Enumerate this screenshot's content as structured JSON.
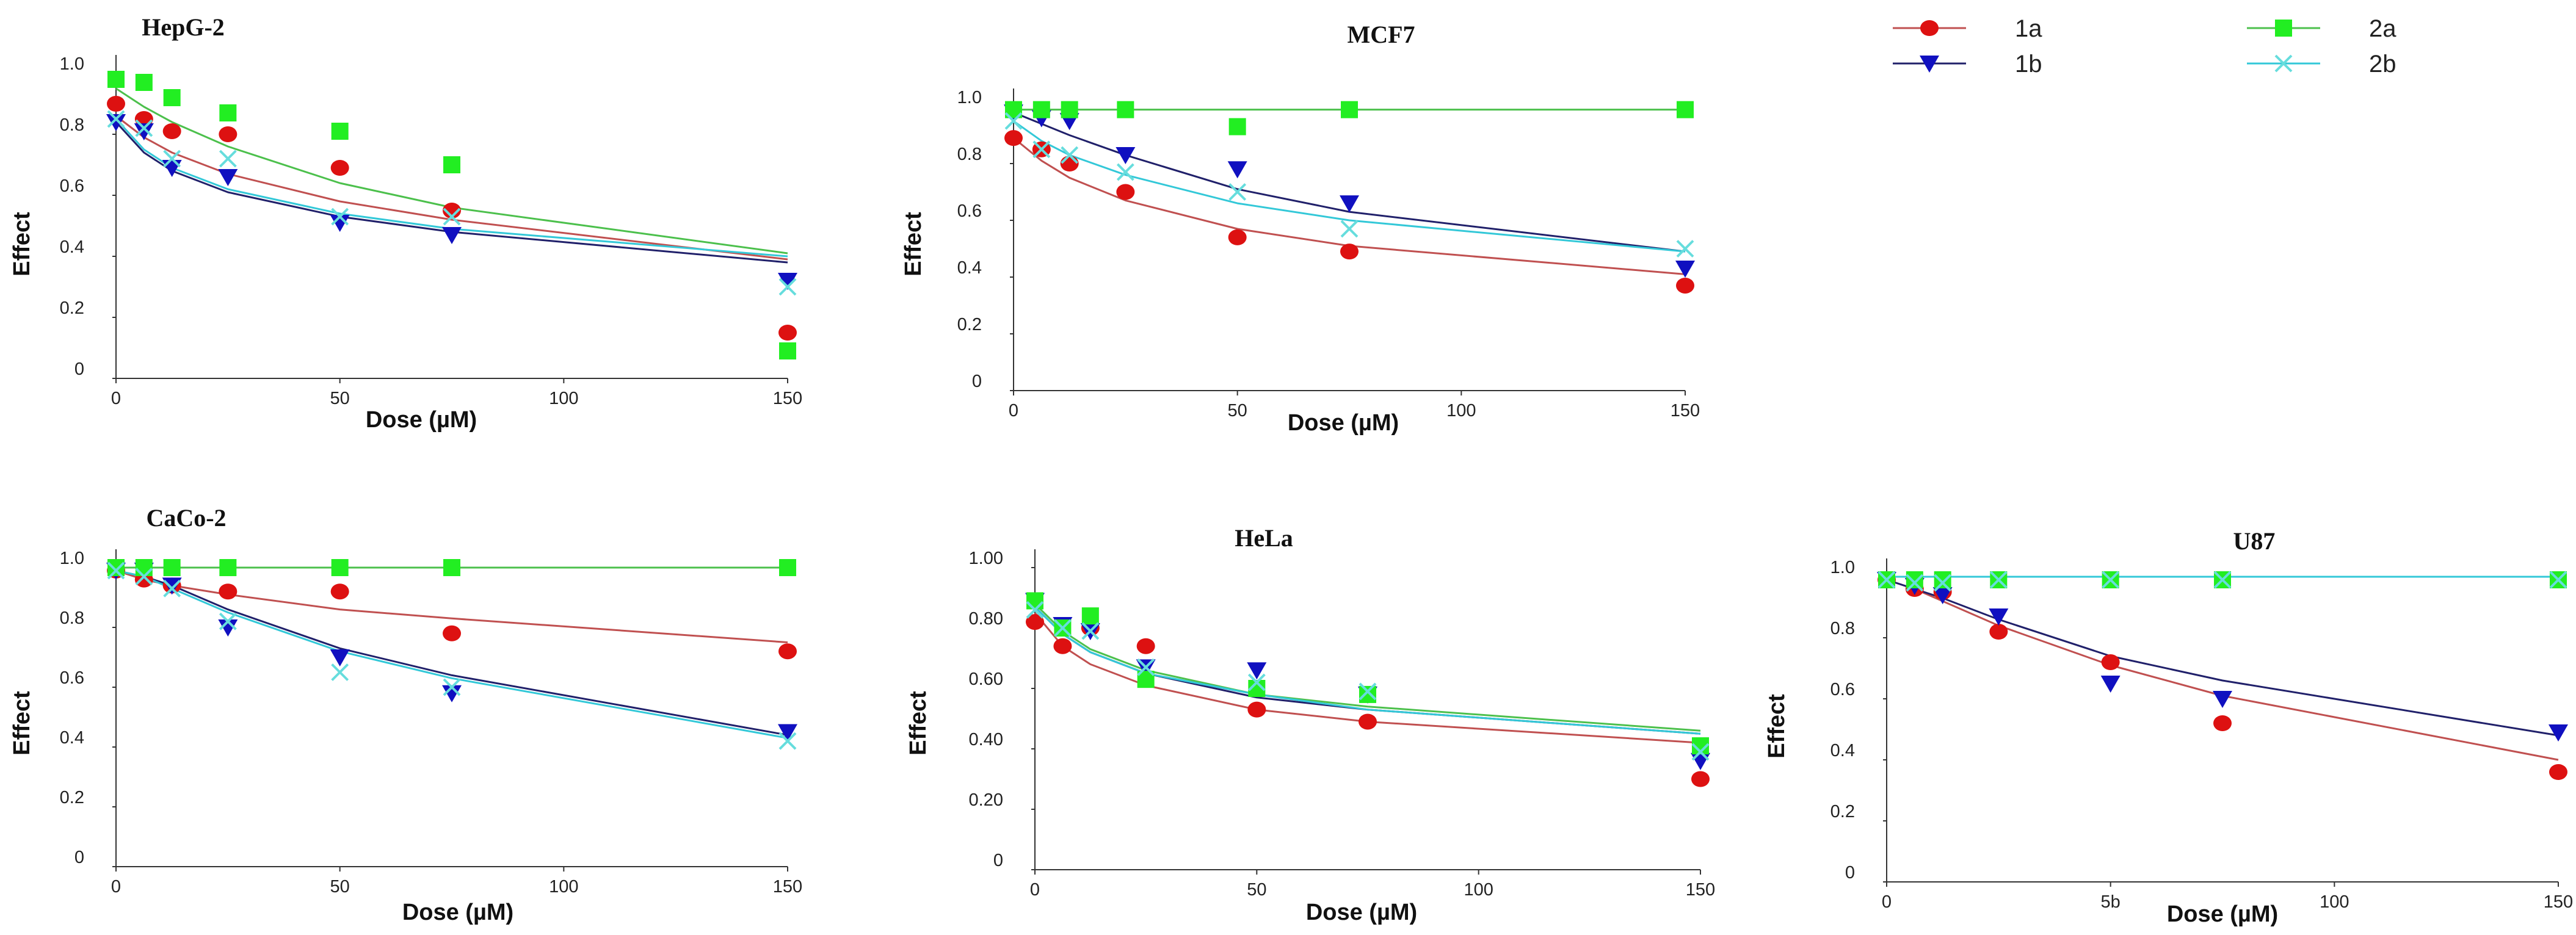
{
  "figure": {
    "legend": [
      {
        "key": "1a",
        "label": "1a",
        "marker": "circle",
        "color": "#dd1111",
        "line_color": "#c05050"
      },
      {
        "key": "1b",
        "label": "1b",
        "marker": "triangle-down",
        "color": "#1010c0",
        "line_color": "#20206a"
      },
      {
        "key": "2a",
        "label": "2a",
        "marker": "square",
        "color": "#22ee22",
        "line_color": "#4cc04c"
      },
      {
        "key": "2b",
        "label": "2b",
        "marker": "x",
        "color": "#66dddd",
        "line_color": "#33c8d8"
      }
    ]
  },
  "chart_data": [
    {
      "type": "scatter",
      "title": "HepG-2",
      "xlabel": "Dose (µM)",
      "ylabel": "Effect",
      "xlim": [
        0,
        150
      ],
      "ylim": [
        0,
        1.0
      ],
      "xticks": [
        "0",
        "50",
        "100",
        "150"
      ],
      "yticks": [
        "0",
        "0.2",
        "0.4",
        "0.6",
        "0.8",
        "1.0"
      ],
      "series": [
        {
          "name": "1a",
          "x": [
            0,
            6.25,
            12.5,
            25,
            50,
            75,
            150
          ],
          "values": [
            0.9,
            0.85,
            0.81,
            0.8,
            0.69,
            0.55,
            0.15
          ],
          "fit": [
            0.86,
            0.79,
            0.74,
            0.67,
            0.58,
            0.52,
            0.39
          ]
        },
        {
          "name": "1b",
          "x": [
            0,
            6.25,
            12.5,
            25,
            50,
            75,
            150
          ],
          "values": [
            0.84,
            0.81,
            0.69,
            0.66,
            0.51,
            0.47,
            0.32
          ],
          "fit": [
            0.84,
            0.74,
            0.68,
            0.61,
            0.53,
            0.48,
            0.38
          ]
        },
        {
          "name": "2a",
          "x": [
            0,
            6.25,
            12.5,
            25,
            50,
            75,
            150
          ],
          "values": [
            0.98,
            0.97,
            0.92,
            0.87,
            0.81,
            0.7,
            0.09
          ],
          "fit": [
            0.95,
            0.89,
            0.84,
            0.76,
            0.64,
            0.56,
            0.41
          ]
        },
        {
          "name": "2b",
          "x": [
            0,
            6.25,
            12.5,
            25,
            50,
            75,
            150
          ],
          "values": [
            0.85,
            0.82,
            0.72,
            0.72,
            0.53,
            0.53,
            0.3
          ],
          "fit": [
            0.85,
            0.75,
            0.69,
            0.62,
            0.54,
            0.49,
            0.4
          ]
        }
      ]
    },
    {
      "type": "scatter",
      "title": "MCF7",
      "xlabel": "Dose (µM)",
      "ylabel": "Effect",
      "xlim": [
        0,
        150
      ],
      "ylim": [
        0,
        1.0
      ],
      "xticks": [
        "0",
        "50",
        "100",
        "150"
      ],
      "yticks": [
        "0",
        "0.2",
        "0.4",
        "0.6",
        "0.8",
        "1.0"
      ],
      "series": [
        {
          "name": "1a",
          "x": [
            0,
            6.25,
            12.5,
            25,
            50,
            75,
            150
          ],
          "values": [
            0.89,
            0.85,
            0.8,
            0.7,
            0.54,
            0.49,
            0.37
          ],
          "fit": [
            0.89,
            0.81,
            0.75,
            0.67,
            0.57,
            0.51,
            0.41
          ]
        },
        {
          "name": "1b",
          "x": [
            0,
            6.25,
            12.5,
            25,
            50,
            75,
            150
          ],
          "values": [
            0.98,
            0.96,
            0.95,
            0.83,
            0.78,
            0.66,
            0.43
          ],
          "fit": [
            0.98,
            0.94,
            0.9,
            0.83,
            0.71,
            0.63,
            0.49
          ]
        },
        {
          "name": "2a",
          "x": [
            0,
            6.25,
            12.5,
            25,
            50,
            75,
            150
          ],
          "values": [
            0.99,
            0.99,
            0.99,
            0.99,
            0.93,
            0.99,
            0.99
          ],
          "fit": [
            0.99,
            0.99,
            0.99,
            0.99,
            0.99,
            0.99,
            0.99
          ]
        },
        {
          "name": "2b",
          "x": [
            0,
            6.25,
            12.5,
            25,
            50,
            75,
            150
          ],
          "values": [
            0.95,
            0.85,
            0.83,
            0.77,
            0.7,
            0.57,
            0.5
          ],
          "fit": [
            0.95,
            0.88,
            0.83,
            0.76,
            0.66,
            0.6,
            0.49
          ]
        }
      ]
    },
    {
      "type": "scatter",
      "title": "CaCo-2",
      "xlabel": "Dose (µM)",
      "ylabel": "Effect",
      "xlim": [
        0,
        150
      ],
      "ylim": [
        0,
        1.0
      ],
      "xticks": [
        "0",
        "50",
        "100",
        "150"
      ],
      "yticks": [
        "0",
        "0.2",
        "0.4",
        "0.6",
        "0.8",
        "1.0"
      ],
      "series": [
        {
          "name": "1a",
          "x": [
            0,
            6.25,
            12.5,
            25,
            50,
            75,
            150
          ],
          "values": [
            0.99,
            0.96,
            0.94,
            0.92,
            0.92,
            0.78,
            0.72
          ],
          "fit": [
            0.99,
            0.96,
            0.94,
            0.91,
            0.86,
            0.83,
            0.75
          ]
        },
        {
          "name": "1b",
          "x": [
            0,
            6.25,
            12.5,
            25,
            50,
            75,
            150
          ],
          "values": [
            0.99,
            0.99,
            0.94,
            0.8,
            0.7,
            0.58,
            0.45
          ],
          "fit": [
            0.99,
            0.97,
            0.94,
            0.86,
            0.73,
            0.64,
            0.44
          ]
        },
        {
          "name": "2a",
          "x": [
            0,
            6.25,
            12.5,
            25,
            50,
            75,
            150
          ],
          "values": [
            1.0,
            1.0,
            1.0,
            1.0,
            1.0,
            1.0,
            1.0
          ],
          "fit": [
            1.0,
            1.0,
            1.0,
            1.0,
            1.0,
            1.0,
            1.0
          ]
        },
        {
          "name": "2b",
          "x": [
            0,
            6.25,
            12.5,
            25,
            50,
            75,
            150
          ],
          "values": [
            0.99,
            0.97,
            0.93,
            0.82,
            0.65,
            0.6,
            0.42
          ],
          "fit": [
            0.99,
            0.97,
            0.93,
            0.85,
            0.72,
            0.63,
            0.43
          ]
        }
      ]
    },
    {
      "type": "scatter",
      "title": "HeLa",
      "xlabel": "Dose (µM)",
      "ylabel": "Effect",
      "xlim": [
        0,
        150
      ],
      "ylim": [
        0,
        1.0
      ],
      "xticks": [
        "0",
        "50",
        "100",
        "150"
      ],
      "yticks": [
        "0",
        "0.20",
        "0.40",
        "0.60",
        "0.80",
        "1.00"
      ],
      "series": [
        {
          "name": "1a",
          "x": [
            0,
            6.25,
            12.5,
            25,
            50,
            75,
            150
          ],
          "values": [
            0.82,
            0.74,
            0.8,
            0.74,
            0.53,
            0.49,
            0.3
          ],
          "fit": [
            0.85,
            0.74,
            0.68,
            0.61,
            0.53,
            0.49,
            0.42
          ]
        },
        {
          "name": "1b",
          "x": [
            0,
            6.25,
            12.5,
            25,
            50,
            75,
            150
          ],
          "values": [
            0.89,
            0.81,
            0.79,
            0.67,
            0.66,
            0.58,
            0.36
          ],
          "fit": [
            0.87,
            0.78,
            0.72,
            0.65,
            0.57,
            0.53,
            0.45
          ]
        },
        {
          "name": "2a",
          "x": [
            0,
            6.25,
            12.5,
            25,
            50,
            75,
            150
          ],
          "values": [
            0.89,
            0.8,
            0.84,
            0.63,
            0.6,
            0.58,
            0.41
          ],
          "fit": [
            0.88,
            0.79,
            0.73,
            0.66,
            0.58,
            0.54,
            0.46
          ]
        },
        {
          "name": "2b",
          "x": [
            0,
            6.25,
            12.5,
            25,
            50,
            75,
            150
          ],
          "values": [
            0.86,
            0.8,
            0.79,
            0.67,
            0.62,
            0.59,
            0.39
          ],
          "fit": [
            0.87,
            0.78,
            0.72,
            0.65,
            0.58,
            0.53,
            0.45
          ]
        }
      ]
    },
    {
      "type": "scatter",
      "title": "U87",
      "xlabel": "Dose (µM)",
      "ylabel": "Effect",
      "xlim": [
        0,
        150
      ],
      "ylim": [
        0,
        1.0
      ],
      "xticks": [
        "0",
        "5b",
        "100",
        "150"
      ],
      "yticks": [
        "0",
        "0.2",
        "0.4",
        "0.6",
        "0.8",
        "1.0"
      ],
      "series": [
        {
          "name": "1a",
          "x": [
            0,
            6.25,
            12.5,
            25,
            50,
            75,
            150
          ],
          "values": [
            0.99,
            0.96,
            0.95,
            0.82,
            0.72,
            0.52,
            0.36
          ],
          "fit": [
            0.99,
            0.96,
            0.92,
            0.84,
            0.71,
            0.61,
            0.4
          ]
        },
        {
          "name": "1b",
          "x": [
            0,
            6.25,
            12.5,
            25,
            50,
            75,
            150
          ],
          "values": [
            0.99,
            0.97,
            0.94,
            0.87,
            0.65,
            0.6,
            0.49
          ],
          "fit": [
            0.99,
            0.96,
            0.93,
            0.86,
            0.74,
            0.66,
            0.48
          ]
        },
        {
          "name": "2a",
          "x": [
            0,
            6.25,
            12.5,
            25,
            50,
            75,
            150
          ],
          "values": [
            0.99,
            0.99,
            0.99,
            0.99,
            0.99,
            0.99,
            0.99
          ],
          "fit": [
            1.0,
            1.0,
            1.0,
            1.0,
            1.0,
            1.0,
            1.0
          ]
        },
        {
          "name": "2b",
          "x": [
            0,
            6.25,
            12.5,
            25,
            50,
            75,
            150
          ],
          "values": [
            0.99,
            0.98,
            0.98,
            0.99,
            0.99,
            0.99,
            0.99
          ],
          "fit": [
            1.0,
            1.0,
            1.0,
            1.0,
            1.0,
            1.0,
            1.0
          ]
        }
      ]
    }
  ]
}
